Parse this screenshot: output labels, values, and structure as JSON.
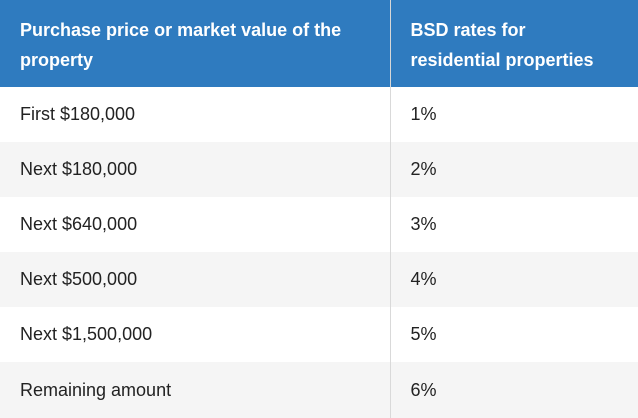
{
  "table": {
    "headers": [
      "Purchase price or market value of the property",
      "BSD rates for residential properties"
    ],
    "rows": [
      {
        "amount": "First $180,000",
        "rate": "1%"
      },
      {
        "amount": "Next $180,000",
        "rate": "2%"
      },
      {
        "amount": "Next $640,000",
        "rate": "3%"
      },
      {
        "amount": "Next $500,000",
        "rate": "4%"
      },
      {
        "amount": "Next $1,500,000",
        "rate": "5%"
      },
      {
        "amount": "Remaining amount",
        "rate": "6%"
      }
    ]
  },
  "colors": {
    "header_bg": "#2f7bbf",
    "header_text": "#ffffff",
    "row_alt_bg": "#f5f5f5",
    "body_text": "#222222"
  }
}
